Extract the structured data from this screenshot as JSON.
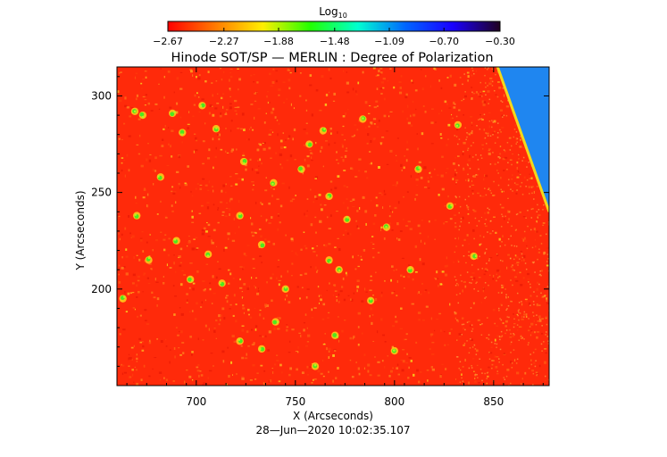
{
  "chart_data": {
    "type": "heatmap",
    "title": "Hinode SOT/SP — MERLIN : Degree of Polarization",
    "xlabel": "X (Arcseconds)",
    "ylabel": "Y (Arcseconds)",
    "timestamp": "28—Jun—2020 10:02:35.107",
    "xlim": [
      660,
      878
    ],
    "ylim": [
      150,
      315
    ],
    "x_ticks": [
      700,
      750,
      800,
      850
    ],
    "x_tick_labels": [
      "700",
      "750",
      "800",
      "850"
    ],
    "y_ticks": [
      200,
      250,
      300
    ],
    "y_tick_labels": [
      "200",
      "250",
      "300"
    ],
    "colorbar": {
      "label_base": "Log",
      "label_sub": "10",
      "range": [
        -2.67,
        -0.3
      ],
      "colormap": "rainbow",
      "colors": [
        "#ff0000",
        "#ff7a00",
        "#ffee00",
        "#22ff00",
        "#00ffd0",
        "#0066ff",
        "#1a00ff",
        "#200020"
      ],
      "ticks": [
        -2.67,
        -2.27,
        -1.88,
        -1.48,
        -1.09,
        -0.7,
        -0.3
      ],
      "tick_labels": [
        "−2.67",
        "−2.27",
        "−1.88",
        "−1.48",
        "−1.09",
        "−0.70",
        "−0.30"
      ]
    },
    "limb_boundary": [
      {
        "x": 852,
        "y": 315
      },
      {
        "x": 878,
        "y": 240
      }
    ],
    "off_limb_color": "#1f86f0",
    "disk_color": "#ff2a0a",
    "features": [
      {
        "x": 669,
        "y": 292
      },
      {
        "x": 673,
        "y": 290
      },
      {
        "x": 688,
        "y": 291
      },
      {
        "x": 693,
        "y": 281
      },
      {
        "x": 703,
        "y": 295
      },
      {
        "x": 710,
        "y": 283
      },
      {
        "x": 682,
        "y": 258
      },
      {
        "x": 670,
        "y": 238
      },
      {
        "x": 724,
        "y": 266
      },
      {
        "x": 739,
        "y": 255
      },
      {
        "x": 753,
        "y": 262
      },
      {
        "x": 767,
        "y": 248
      },
      {
        "x": 776,
        "y": 236
      },
      {
        "x": 764,
        "y": 282
      },
      {
        "x": 706,
        "y": 218
      },
      {
        "x": 713,
        "y": 203
      },
      {
        "x": 697,
        "y": 205
      },
      {
        "x": 733,
        "y": 223
      },
      {
        "x": 722,
        "y": 238
      },
      {
        "x": 767,
        "y": 215
      },
      {
        "x": 772,
        "y": 210
      },
      {
        "x": 788,
        "y": 194
      },
      {
        "x": 770,
        "y": 176
      },
      {
        "x": 733,
        "y": 169
      },
      {
        "x": 740,
        "y": 183
      },
      {
        "x": 676,
        "y": 215
      },
      {
        "x": 663,
        "y": 195
      },
      {
        "x": 757,
        "y": 275
      },
      {
        "x": 796,
        "y": 232
      },
      {
        "x": 812,
        "y": 262
      },
      {
        "x": 808,
        "y": 210
      },
      {
        "x": 840,
        "y": 217
      },
      {
        "x": 800,
        "y": 168
      },
      {
        "x": 828,
        "y": 243
      },
      {
        "x": 784,
        "y": 288
      },
      {
        "x": 722,
        "y": 173
      },
      {
        "x": 690,
        "y": 225
      },
      {
        "x": 745,
        "y": 200
      },
      {
        "x": 760,
        "y": 160
      },
      {
        "x": 832,
        "y": 285
      }
    ]
  }
}
